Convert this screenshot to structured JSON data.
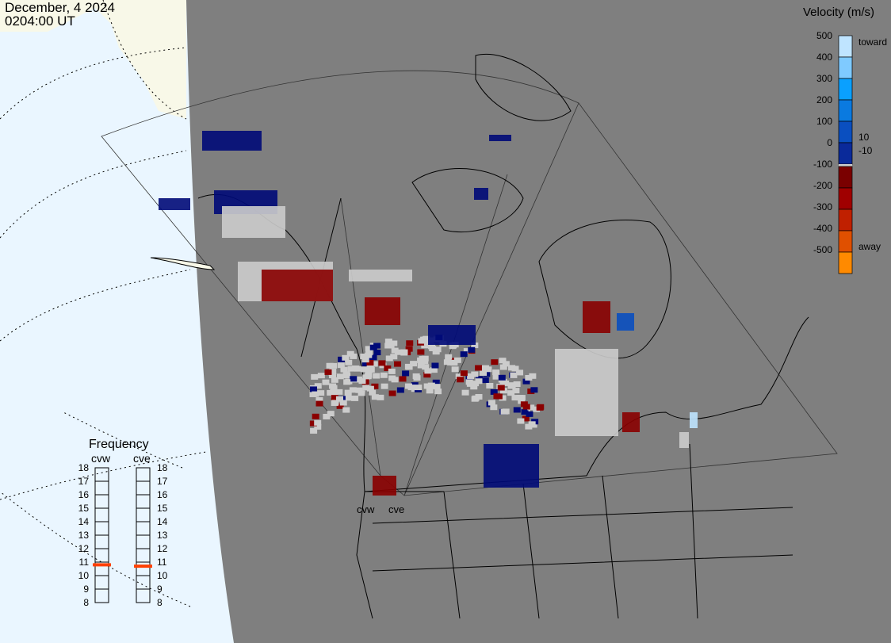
{
  "header": {
    "date": "December, 4 2024",
    "time": "0204:00 UT"
  },
  "colorbar": {
    "title": "Velocity (m/s)",
    "ticks": [
      "500",
      "400",
      "300",
      "200",
      "100",
      "0",
      "-100",
      "-200",
      "-300",
      "-400",
      "-500"
    ],
    "small_labels": [
      "10",
      "-10"
    ],
    "toward_label": "toward",
    "away_label": "away",
    "colors": [
      "#bfe4ff",
      "#7fcaff",
      "#0aa0ff",
      "#0a7ae0",
      "#0a4fc0",
      "#0a2a9a",
      "#000a78",
      "#7a0000",
      "#a00000",
      "#c02000",
      "#e05000",
      "#ff8a00",
      "#ffc080"
    ],
    "gray_color": "#cccccc"
  },
  "frequency": {
    "title": "Frequency",
    "radars": [
      {
        "name": "cvw",
        "value_mhz": 10.8
      },
      {
        "name": "cve",
        "value_mhz": 10.7
      }
    ],
    "ticks": [
      "18",
      "17",
      "16",
      "15",
      "14",
      "13",
      "12",
      "11",
      "10",
      "9",
      "8"
    ],
    "marker_color": "#ff4000"
  },
  "map": {
    "radar_labels": [
      "cvw",
      "cve"
    ],
    "land_color": "#7f7f7f",
    "ocean_color": "#eaf6ff",
    "dayside_land_color": "#f8f8e8"
  }
}
